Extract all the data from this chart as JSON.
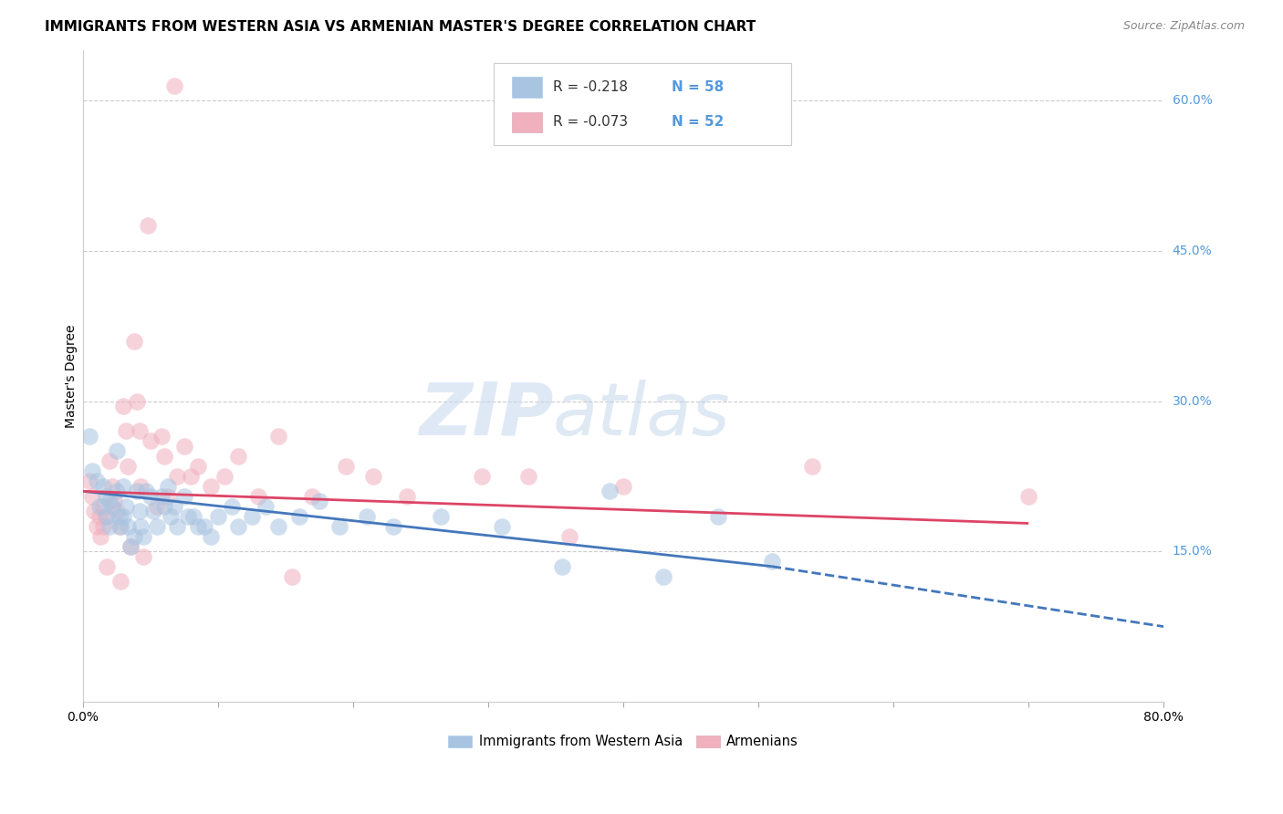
{
  "title": "IMMIGRANTS FROM WESTERN ASIA VS ARMENIAN MASTER'S DEGREE CORRELATION CHART",
  "source": "Source: ZipAtlas.com",
  "ylabel": "Master's Degree",
  "xlim": [
    0.0,
    0.8
  ],
  "ylim": [
    0.0,
    0.65
  ],
  "yticks_right": [
    0.15,
    0.3,
    0.45,
    0.6
  ],
  "ytick_right_labels": [
    "15.0%",
    "30.0%",
    "45.0%",
    "60.0%"
  ],
  "grid_color": "#cccccc",
  "background_color": "#ffffff",
  "blue_color": "#a8c4e0",
  "pink_color": "#f0b0be",
  "blue_line_color": "#4477bb",
  "pink_line_color": "#dd4466",
  "legend_r_blue": "R = -0.218",
  "legend_n_blue": "N = 58",
  "legend_r_pink": "R = -0.073",
  "legend_n_pink": "N = 52",
  "legend_label_blue": "Immigrants from Western Asia",
  "legend_label_pink": "Armenians",
  "blue_scatter_x": [
    0.005,
    0.007,
    0.01,
    0.012,
    0.015,
    0.017,
    0.018,
    0.02,
    0.02,
    0.022,
    0.025,
    0.025,
    0.027,
    0.028,
    0.03,
    0.03,
    0.032,
    0.033,
    0.035,
    0.038,
    0.04,
    0.042,
    0.043,
    0.045,
    0.047,
    0.05,
    0.052,
    0.055,
    0.058,
    0.06,
    0.063,
    0.065,
    0.068,
    0.07,
    0.075,
    0.078,
    0.082,
    0.085,
    0.09,
    0.095,
    0.1,
    0.11,
    0.115,
    0.125,
    0.135,
    0.145,
    0.16,
    0.175,
    0.19,
    0.21,
    0.23,
    0.265,
    0.31,
    0.355,
    0.39,
    0.43,
    0.47,
    0.51
  ],
  "blue_scatter_y": [
    0.265,
    0.23,
    0.22,
    0.195,
    0.215,
    0.205,
    0.185,
    0.2,
    0.175,
    0.195,
    0.25,
    0.21,
    0.185,
    0.175,
    0.215,
    0.185,
    0.195,
    0.175,
    0.155,
    0.165,
    0.21,
    0.19,
    0.175,
    0.165,
    0.21,
    0.205,
    0.19,
    0.175,
    0.205,
    0.195,
    0.215,
    0.185,
    0.195,
    0.175,
    0.205,
    0.185,
    0.185,
    0.175,
    0.175,
    0.165,
    0.185,
    0.195,
    0.175,
    0.185,
    0.195,
    0.175,
    0.185,
    0.2,
    0.175,
    0.185,
    0.175,
    0.185,
    0.175,
    0.135,
    0.21,
    0.125,
    0.185,
    0.14
  ],
  "pink_scatter_x": [
    0.005,
    0.007,
    0.008,
    0.01,
    0.012,
    0.013,
    0.015,
    0.015,
    0.017,
    0.018,
    0.02,
    0.022,
    0.023,
    0.025,
    0.027,
    0.028,
    0.03,
    0.032,
    0.033,
    0.035,
    0.038,
    0.04,
    0.042,
    0.043,
    0.045,
    0.048,
    0.05,
    0.055,
    0.058,
    0.06,
    0.063,
    0.068,
    0.07,
    0.075,
    0.08,
    0.085,
    0.095,
    0.105,
    0.115,
    0.13,
    0.145,
    0.155,
    0.17,
    0.195,
    0.215,
    0.24,
    0.295,
    0.33,
    0.36,
    0.4,
    0.54,
    0.7
  ],
  "pink_scatter_y": [
    0.22,
    0.205,
    0.19,
    0.175,
    0.185,
    0.165,
    0.195,
    0.175,
    0.185,
    0.135,
    0.24,
    0.215,
    0.2,
    0.19,
    0.175,
    0.12,
    0.295,
    0.27,
    0.235,
    0.155,
    0.36,
    0.3,
    0.27,
    0.215,
    0.145,
    0.475,
    0.26,
    0.195,
    0.265,
    0.245,
    0.205,
    0.615,
    0.225,
    0.255,
    0.225,
    0.235,
    0.215,
    0.225,
    0.245,
    0.205,
    0.265,
    0.125,
    0.205,
    0.235,
    0.225,
    0.205,
    0.225,
    0.225,
    0.165,
    0.215,
    0.235,
    0.205
  ],
  "watermark_zip": "ZIP",
  "watermark_atlas": "atlas",
  "blue_trend_x_start": 0.0,
  "blue_trend_y_start": 0.21,
  "blue_trend_x_end": 0.51,
  "blue_trend_y_end": 0.135,
  "blue_trend_x_dash_end": 0.8,
  "blue_trend_y_dash_end": 0.075,
  "pink_trend_x_start": 0.0,
  "pink_trend_y_start": 0.21,
  "pink_trend_x_end": 0.7,
  "pink_trend_y_end": 0.178,
  "right_label_color": "#5599dd",
  "title_fontsize": 11,
  "axis_label_fontsize": 10,
  "tick_fontsize": 10,
  "legend_fontsize": 11,
  "scatter_size": 180,
  "scatter_alpha": 0.55,
  "scatter_linewidth": 1.2
}
